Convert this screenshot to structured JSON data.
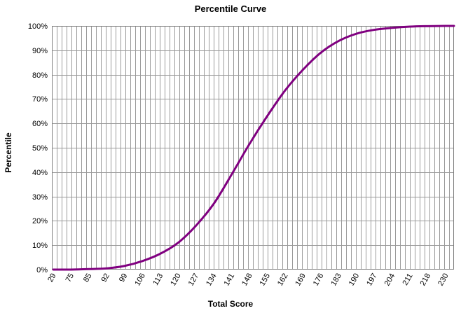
{
  "chart_data": {
    "type": "line",
    "title": "Percentile Curve",
    "xlabel": "Total Score",
    "ylabel": "Percentile",
    "x_tick_labels": [
      "29",
      "75",
      "85",
      "92",
      "99",
      "106",
      "113",
      "120",
      "127",
      "134",
      "141",
      "148",
      "155",
      "162",
      "169",
      "176",
      "183",
      "190",
      "197",
      "204",
      "211",
      "218",
      "230"
    ],
    "y_tick_labels": [
      "0%",
      "10%",
      "20%",
      "30%",
      "40%",
      "50%",
      "60%",
      "70%",
      "80%",
      "90%",
      "100%"
    ],
    "ylim": [
      0,
      100
    ],
    "grid": true,
    "legend": "none",
    "line_color": "#800080",
    "series": [
      {
        "x": [
          "29",
          "75",
          "85",
          "92",
          "99",
          "106",
          "113",
          "120",
          "127",
          "134",
          "141",
          "148",
          "155",
          "162",
          "169",
          "176",
          "183",
          "190",
          "197",
          "204",
          "211",
          "218",
          "230"
        ],
        "values": [
          0,
          0,
          0.2,
          0.5,
          1.5,
          3.5,
          6.5,
          11,
          18,
          27,
          39,
          51.5,
          63,
          73.5,
          82,
          89,
          93.8,
          96.8,
          98.4,
          99.2,
          99.7,
          99.9,
          100
        ]
      }
    ]
  }
}
